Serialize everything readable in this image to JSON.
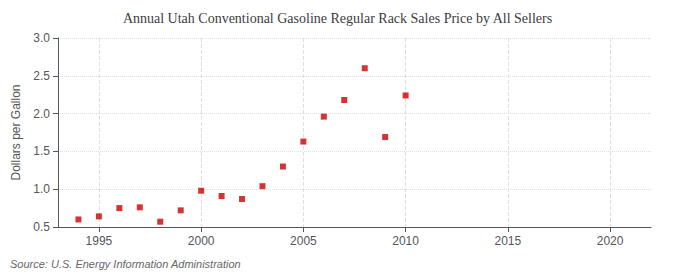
{
  "chart_data": {
    "type": "scatter",
    "title": "Annual Utah Conventional Gasoline Regular Rack Sales Price by All Sellers",
    "ylabel": "Dollars per Gallon",
    "annotation": "Source: U.S. Energy Information Administration",
    "x": [
      1994,
      1995,
      1996,
      1997,
      1998,
      1999,
      2000,
      2001,
      2002,
      2003,
      2004,
      2005,
      2006,
      2007,
      2008,
      2009,
      2010
    ],
    "values": [
      0.6,
      0.64,
      0.75,
      0.76,
      0.57,
      0.72,
      0.98,
      0.91,
      0.87,
      1.04,
      1.3,
      1.63,
      1.96,
      2.18,
      2.6,
      1.69,
      2.24
    ],
    "color": "#cc0000",
    "marker": "square",
    "xlim": [
      1993,
      2022
    ],
    "ylim": [
      0.5,
      3.0
    ],
    "xticks": [
      1995,
      2000,
      2005,
      2010,
      2015,
      2020
    ],
    "yticks": [
      0.5,
      {
        "value": 1.0,
        "label": "1.0"
      },
      1.5,
      {
        "value": 2.0,
        "label": "2.0"
      },
      2.5,
      {
        "value": 3.0,
        "label": "3.0"
      }
    ],
    "grid": true
  }
}
